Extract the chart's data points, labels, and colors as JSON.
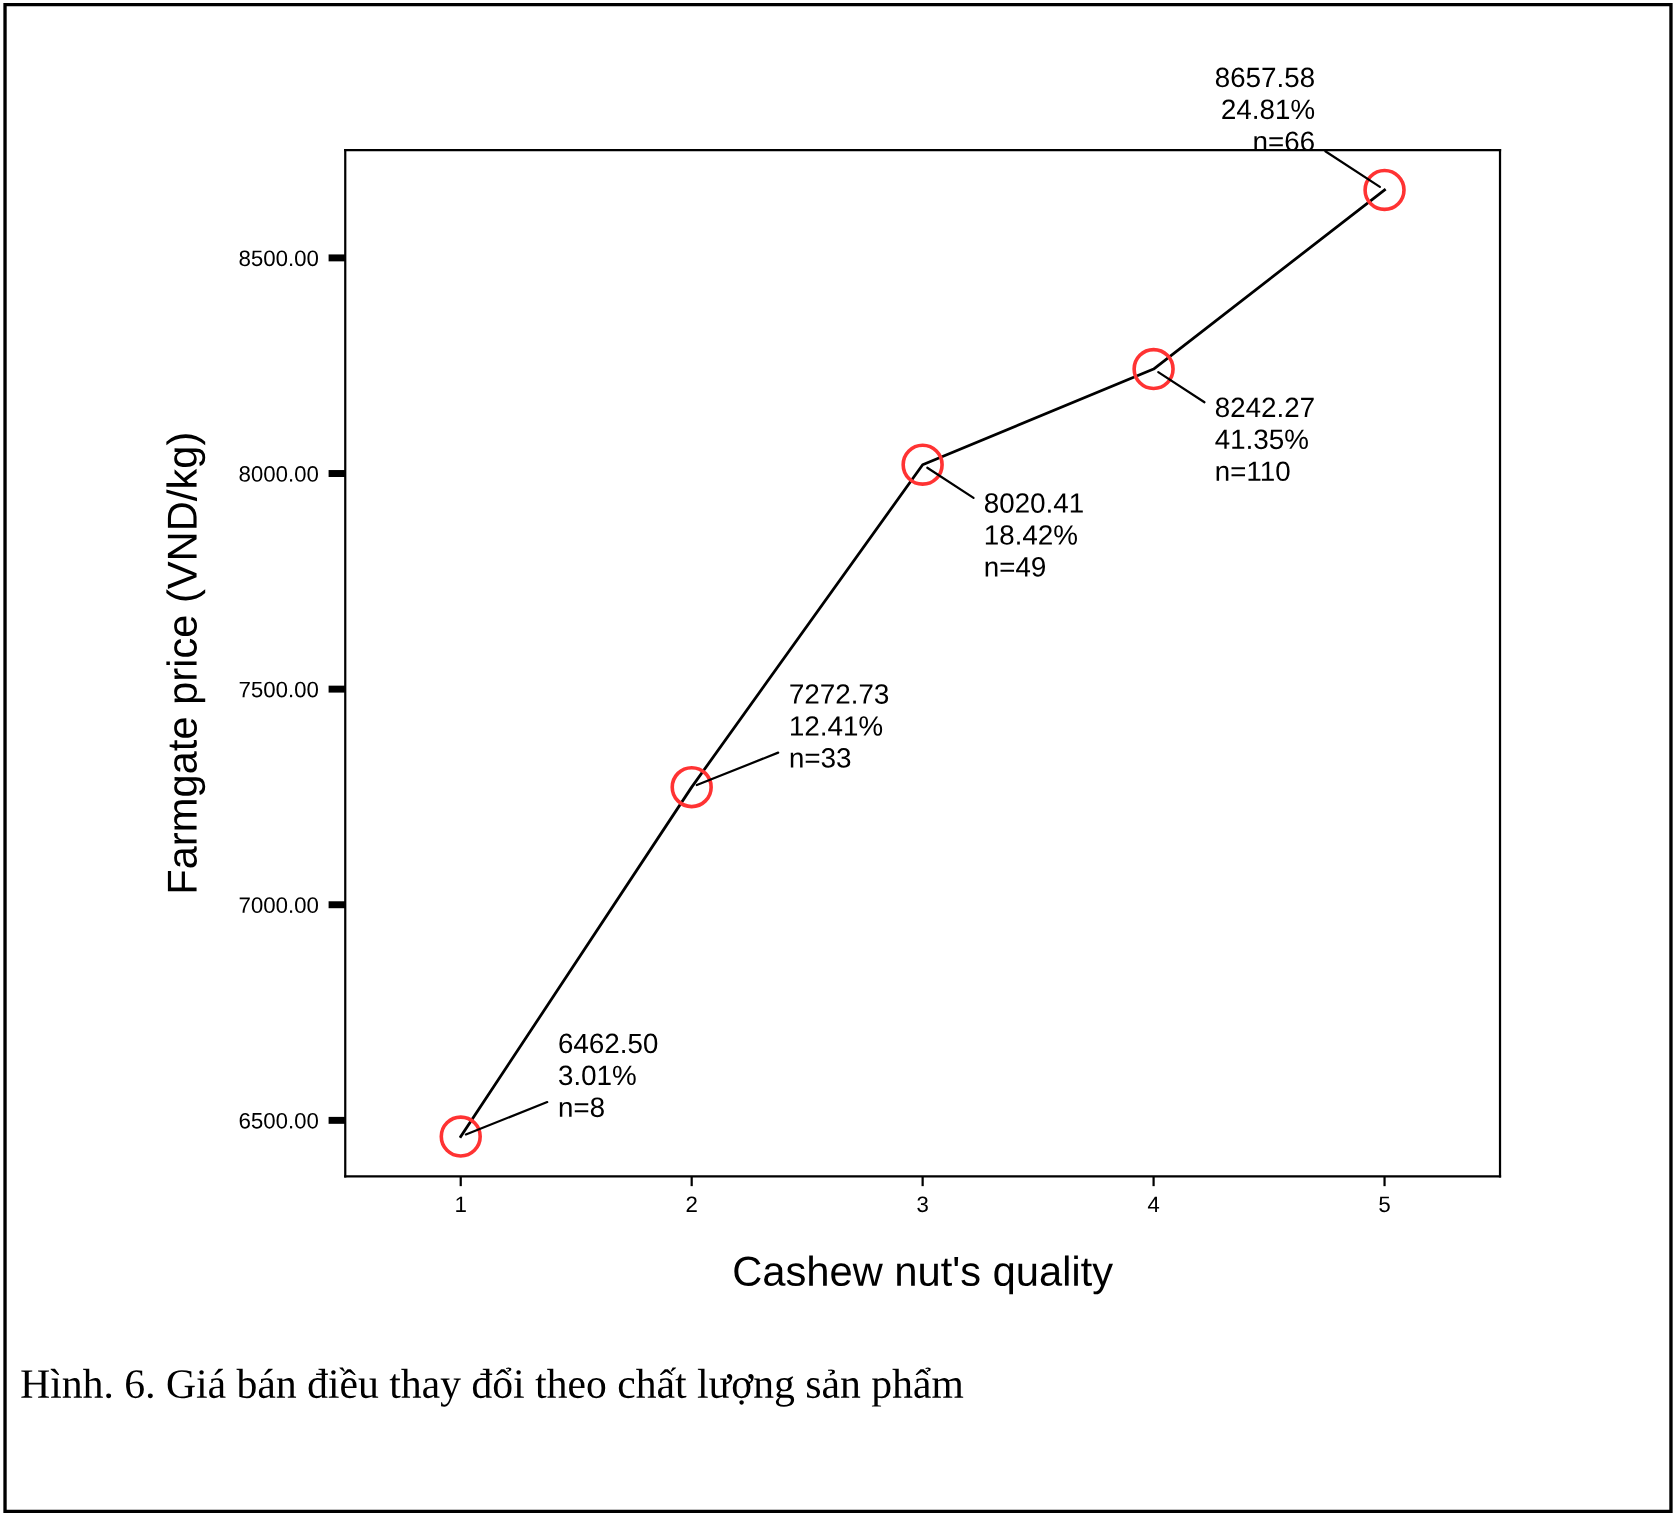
{
  "chart_data": {
    "type": "line",
    "xlabel": "Cashew nut's quality",
    "ylabel": "Farmgate price (VND/kg)",
    "x": [
      1,
      2,
      3,
      4,
      5
    ],
    "series": [
      {
        "color": "#000000",
        "colors": [
          "#ff3333",
          "#ff3333",
          "#ff3333",
          "#ff3333",
          "#ff3333"
        ],
        "values": [
          6462.5,
          7272.73,
          8020.41,
          8242.27,
          8657.58
        ]
      }
    ],
    "marker": "circle",
    "line_style": "solid",
    "grid": false,
    "legend": false,
    "xlim": [
      0.5,
      5.5
    ],
    "ylim": [
      6370,
      8750
    ],
    "xticks": [
      1,
      2,
      3,
      4,
      5
    ],
    "yticks": [
      {
        "value": 6500,
        "label": "6500.00"
      },
      {
        "value": 7000,
        "label": "7000.00"
      },
      {
        "value": 7500,
        "label": "7500.00"
      },
      {
        "value": 8000,
        "label": "8000.00"
      },
      {
        "value": 8500,
        "label": "8500.00"
      }
    ],
    "annotations": [
      {
        "text": "6462.50\n3.01%\nn=8",
        "x": 1,
        "y": 6462.5
      },
      {
        "text": "7272.73\n12.41%\nn=33",
        "x": 2,
        "y": 7272.73
      },
      {
        "text": "8020.41\n18.42%\nn=49",
        "x": 3,
        "y": 8020.41
      },
      {
        "text": "8242.27\n41.35%\nn=110",
        "x": 4,
        "y": 8242.27
      },
      {
        "text": "8657.58\n24.81%\nn=66",
        "x": 5,
        "y": 8657.58
      },
      "Hình. 6. Giá bán điều thay đổi theo chất lượng sản phẩm"
    ]
  }
}
